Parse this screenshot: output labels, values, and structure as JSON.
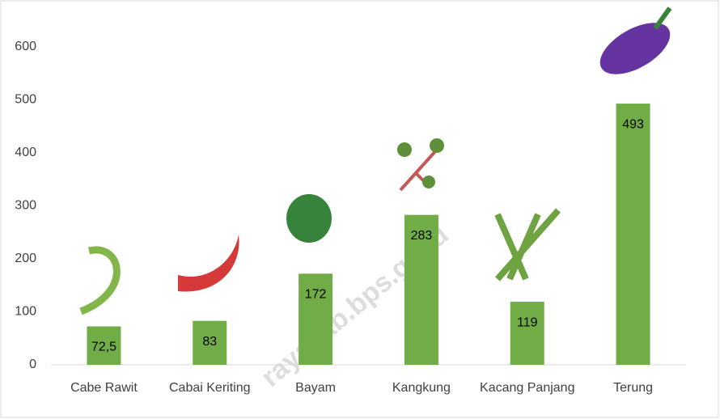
{
  "chart_data": {
    "type": "bar",
    "categories": [
      "Cabe Rawit",
      "Cabai Keriting",
      "Bayam",
      "Kangkung",
      "Kacang Panjang",
      "Terung"
    ],
    "values": [
      72.5,
      83,
      172,
      283,
      119,
      493
    ],
    "value_labels": [
      "72,5",
      "83",
      "172",
      "283",
      "119",
      "493"
    ],
    "color": "#70ad47",
    "ylim": [
      0,
      600
    ],
    "yticks": [
      0,
      100,
      200,
      300,
      400,
      500,
      600
    ],
    "grid": false,
    "watermark": "rayakab.bps.go.id"
  }
}
